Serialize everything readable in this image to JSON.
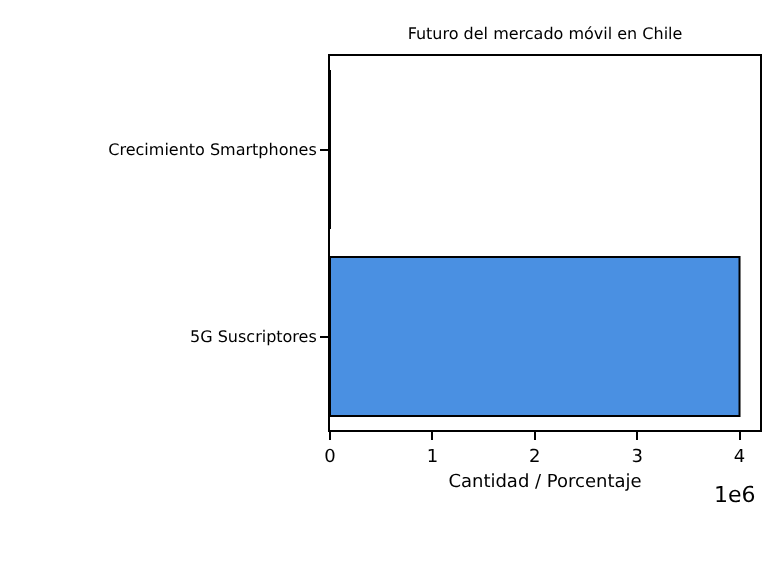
{
  "chart_data": {
    "type": "bar",
    "orientation": "horizontal",
    "title": "Futuro del mercado móvil en Chile",
    "xlabel": "Cantidad / Porcentaje",
    "categories": [
      "Crecimiento Smartphones",
      "5G Suscriptores"
    ],
    "values": [
      0,
      4
    ],
    "color": "#4a90e2",
    "xlim": [
      0,
      4.2
    ],
    "xticks": [
      0,
      1,
      2,
      3,
      4
    ],
    "annotations": [
      "1e6"
    ],
    "grid": false,
    "legend": false
  }
}
